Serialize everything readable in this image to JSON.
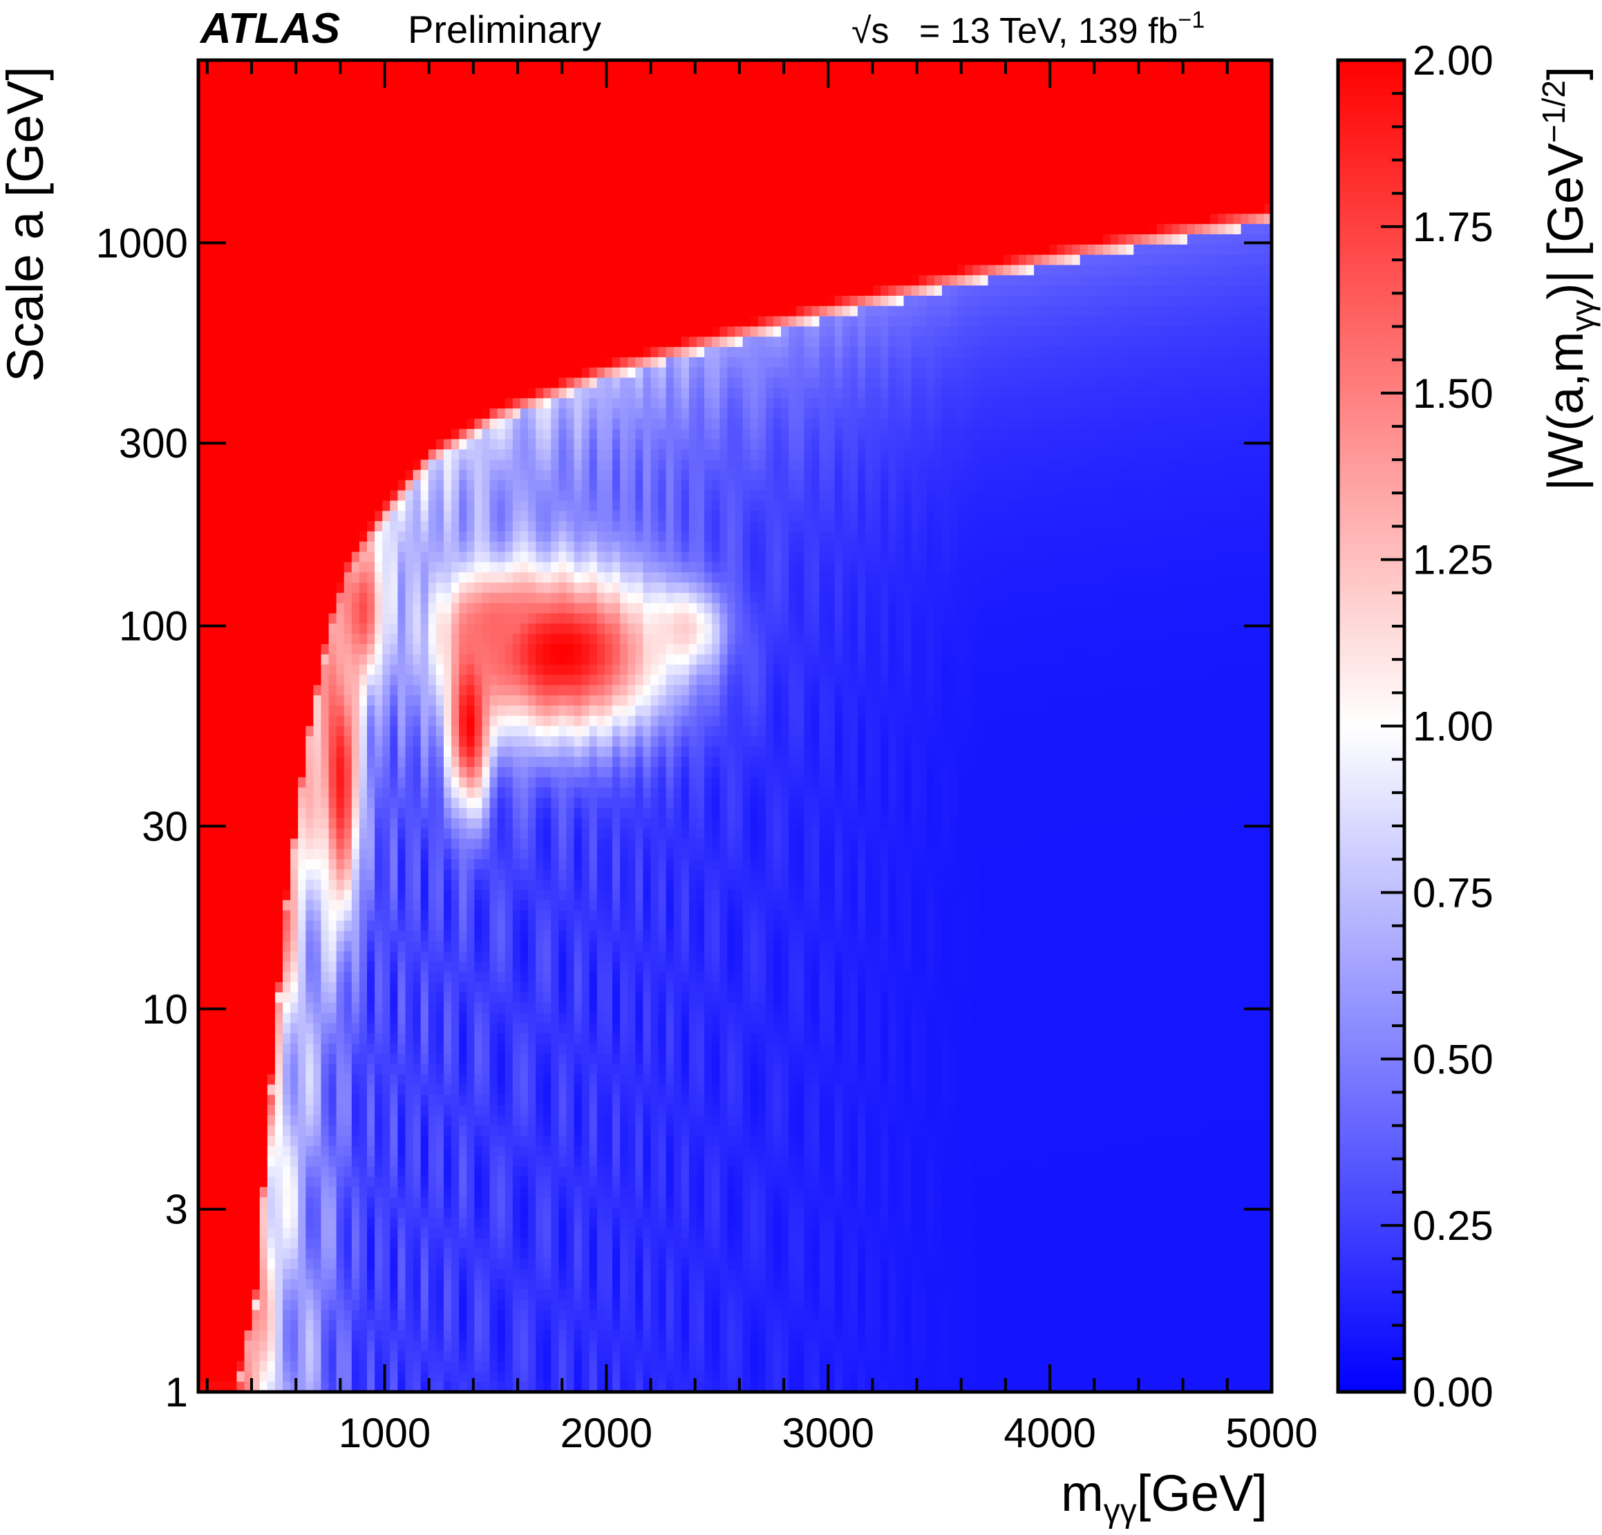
{
  "chart_data": {
    "type": "heatmap",
    "experiment": "ATLAS",
    "status": "Preliminary",
    "energy_label": "= 13 TeV, 139 fb",
    "energy_sqrt": "√s",
    "lumi_exp": "−1",
    "xlabel": {
      "main": "m",
      "sub": "γγ",
      "unit": "[GeV]"
    },
    "ylabel": "Scale a [GeV]",
    "zlabel": {
      "pre": "|W(a,m",
      "sub": "γγ",
      "mid": ")| [GeV",
      "sup": "−1/2",
      "post": "]"
    },
    "x_range": [
      160,
      5000
    ],
    "y_range": [
      1,
      3000
    ],
    "y_scale": "log",
    "z_range": [
      0,
      2
    ],
    "x_ticks": [
      {
        "value": 1000,
        "label": "1000"
      },
      {
        "value": 2000,
        "label": "2000"
      },
      {
        "value": 3000,
        "label": "3000"
      },
      {
        "value": 4000,
        "label": "4000"
      },
      {
        "value": 5000,
        "label": "5000"
      }
    ],
    "y_ticks": [
      {
        "value": 1,
        "label": "1"
      },
      {
        "value": 3,
        "label": "3"
      },
      {
        "value": 10,
        "label": "10"
      },
      {
        "value": 30,
        "label": "30"
      },
      {
        "value": 100,
        "label": "100"
      },
      {
        "value": 300,
        "label": "300"
      },
      {
        "value": 1000,
        "label": "1000"
      }
    ],
    "z_ticks": [
      {
        "value": 0.0,
        "label": "0.00"
      },
      {
        "value": 0.25,
        "label": "0.25"
      },
      {
        "value": 0.5,
        "label": "0.50"
      },
      {
        "value": 0.75,
        "label": "0.75"
      },
      {
        "value": 1.0,
        "label": "1.00"
      },
      {
        "value": 1.25,
        "label": "1.25"
      },
      {
        "value": 1.5,
        "label": "1.50"
      },
      {
        "value": 1.75,
        "label": "1.75"
      },
      {
        "value": 2.0,
        "label": "2.00"
      }
    ],
    "colormap": {
      "low": "#0000ff",
      "mid": "#ffffff",
      "high": "#ff0000"
    },
    "saturation_boundary": [
      {
        "x": 160,
        "y": 1
      },
      {
        "x": 330,
        "y": 1
      },
      {
        "x": 420,
        "y": 1.8
      },
      {
        "x": 500,
        "y": 8
      },
      {
        "x": 560,
        "y": 20
      },
      {
        "x": 650,
        "y": 50
      },
      {
        "x": 750,
        "y": 100
      },
      {
        "x": 850,
        "y": 150
      },
      {
        "x": 1000,
        "y": 200
      },
      {
        "x": 1200,
        "y": 280
      },
      {
        "x": 1500,
        "y": 360
      },
      {
        "x": 2000,
        "y": 470
      },
      {
        "x": 2500,
        "y": 570
      },
      {
        "x": 3000,
        "y": 680
      },
      {
        "x": 3500,
        "y": 800
      },
      {
        "x": 4000,
        "y": 930
      },
      {
        "x": 4500,
        "y": 1060
      },
      {
        "x": 5000,
        "y": 1200
      }
    ],
    "hotspots": [
      {
        "x": 1800,
        "y": 85,
        "z": 2.0,
        "sx": 480,
        "sy": 0.22
      },
      {
        "x": 1380,
        "y": 55,
        "z": 2.0,
        "sx": 90,
        "sy": 0.22
      },
      {
        "x": 1500,
        "y": 100,
        "z": 1.6,
        "sx": 220,
        "sy": 0.12
      },
      {
        "x": 2350,
        "y": 98,
        "z": 1.2,
        "sx": 160,
        "sy": 0.1
      },
      {
        "x": 800,
        "y": 40,
        "z": 1.9,
        "sx": 90,
        "sy": 0.35
      },
      {
        "x": 900,
        "y": 110,
        "z": 1.7,
        "sx": 90,
        "sy": 0.18
      }
    ]
  }
}
